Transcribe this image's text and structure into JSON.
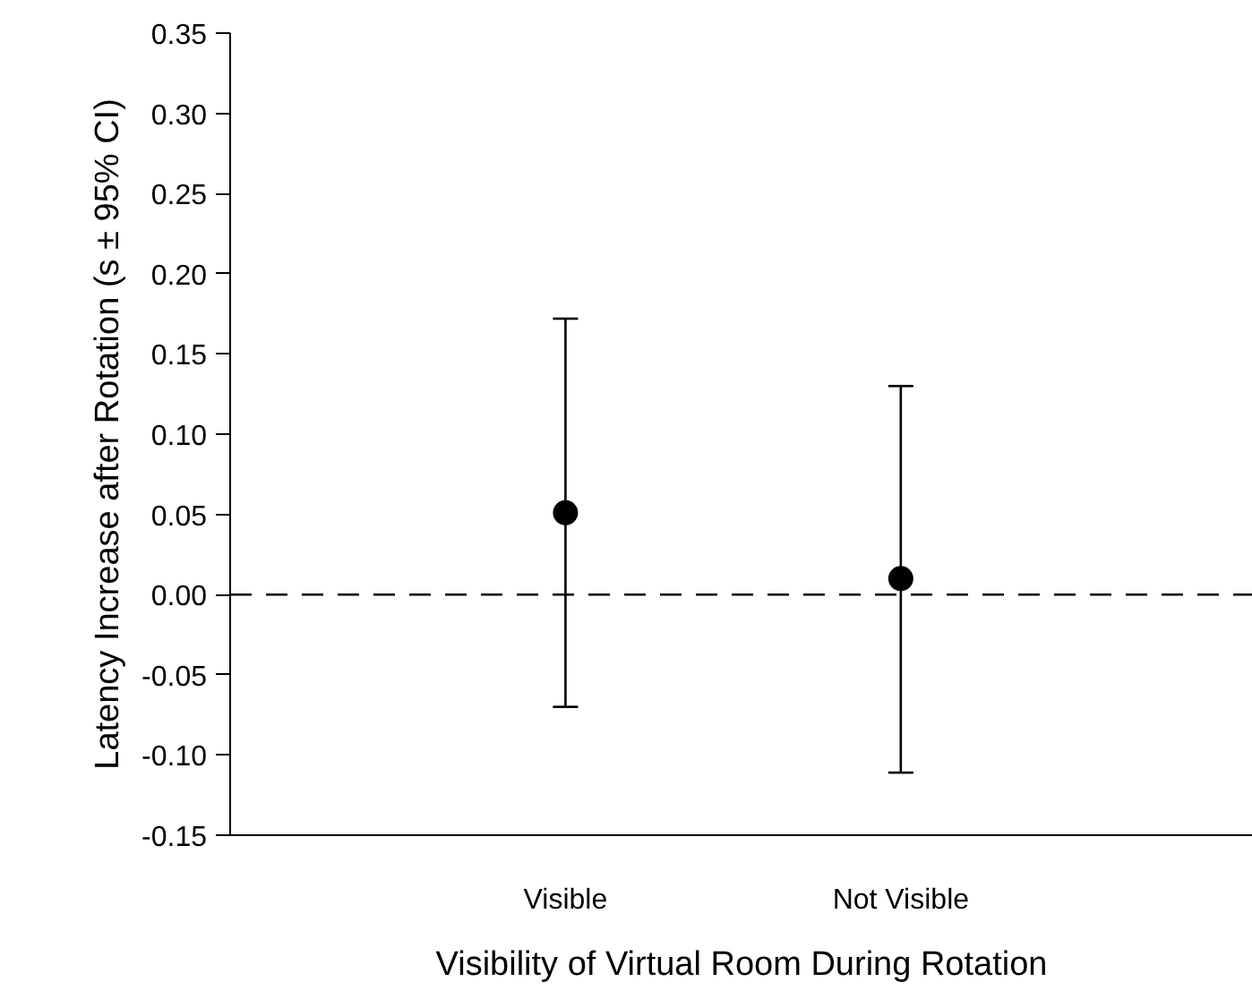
{
  "chart_data": {
    "type": "scatter",
    "xlabel": "Visibility of Virtual Room During Rotation",
    "ylabel": "Latency Increase after Rotation (s ± 95% CI)",
    "categories": [
      "Visible",
      "Not Visible"
    ],
    "series": [
      {
        "color": "#000000",
        "values": [
          0.051,
          0.01
        ],
        "errors": [
          [
            -0.07,
            0.172
          ],
          [
            -0.111,
            0.13
          ]
        ]
      }
    ],
    "ylim": [
      -0.15,
      0.35
    ],
    "yticks": [
      {
        "value": -0.15,
        "label": "-0.15"
      },
      {
        "value": -0.1,
        "label": "-0.10"
      },
      {
        "value": -0.05,
        "label": "-0.05"
      },
      {
        "value": 0,
        "label": "0.00"
      },
      {
        "value": 0.05,
        "label": "0.05"
      },
      {
        "value": 0.1,
        "label": "0.10"
      },
      {
        "value": 0.15,
        "label": "0.15"
      },
      {
        "value": 0.2,
        "label": "0.20"
      },
      {
        "value": 0.25,
        "label": "0.25"
      },
      {
        "value": 0.3,
        "label": "0.30"
      },
      {
        "value": 0.35,
        "label": "0.35"
      }
    ],
    "ref_lines": [
      {
        "axis": "y",
        "value": 0,
        "color": "#000000",
        "line_style": "dashed"
      }
    ],
    "marker": "circle",
    "grid": false
  }
}
